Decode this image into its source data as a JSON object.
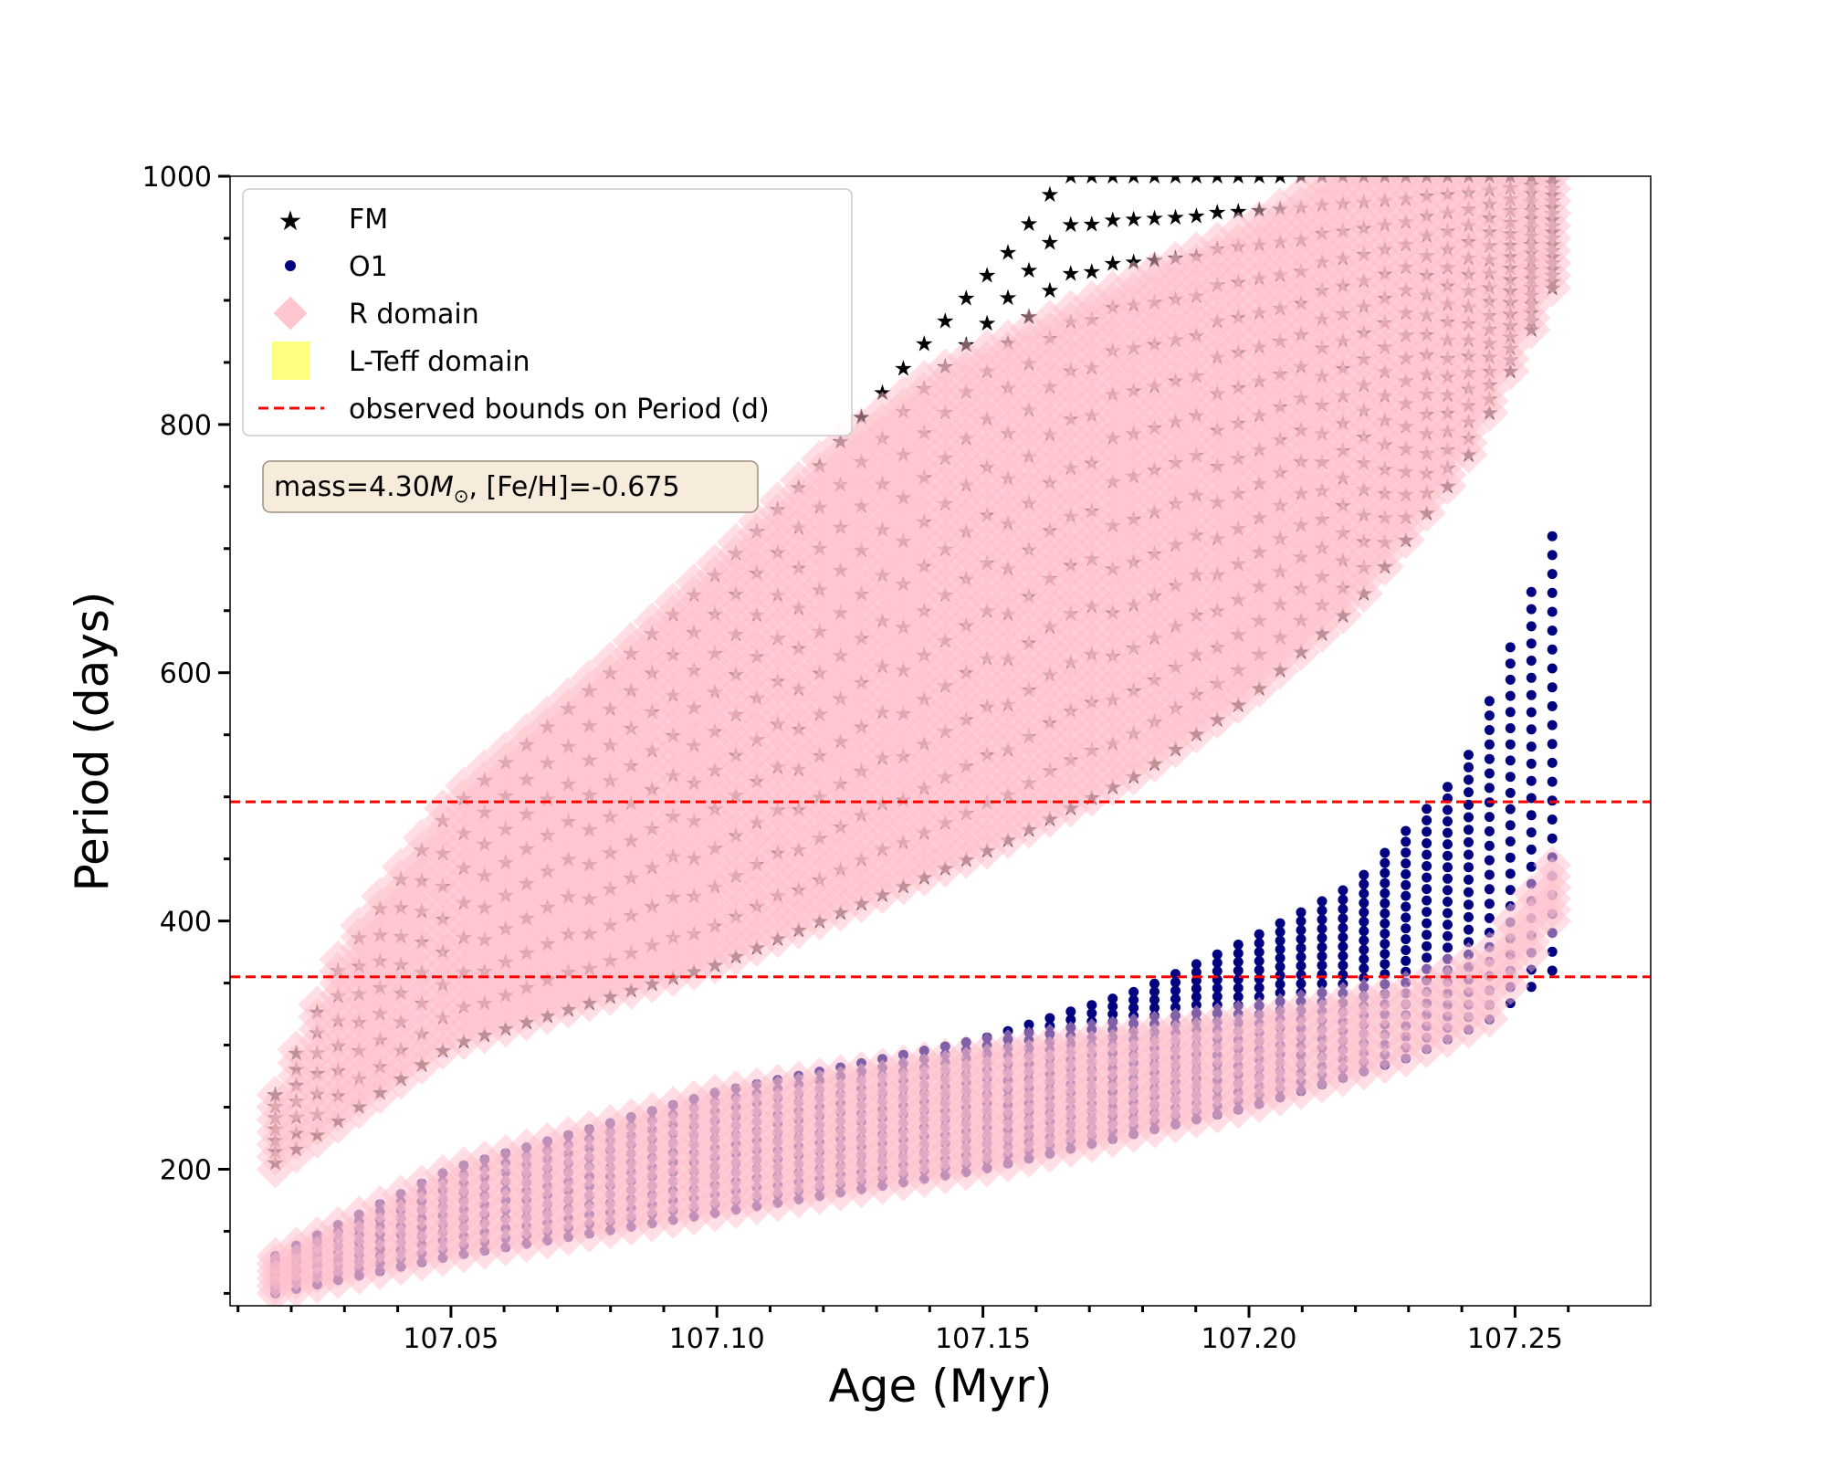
{
  "chart_data": {
    "type": "scatter",
    "title": "",
    "xlabel": "Age (Myr)",
    "ylabel": "Period (days)",
    "xlim": [
      107.0085,
      107.2755
    ],
    "ylim": [
      90,
      1000
    ],
    "x_ticks": [
      "107.05",
      "107.10",
      "107.15",
      "107.20",
      "107.25"
    ],
    "x_tick_values": [
      107.05,
      107.1,
      107.15,
      107.2,
      107.25
    ],
    "y_ticks": [
      "200",
      "400",
      "600",
      "800",
      "1000"
    ],
    "y_tick_values": [
      200,
      400,
      600,
      800,
      1000
    ],
    "grid": false,
    "legend_position": "top-left",
    "legend": [
      {
        "label": "FM",
        "marker": "star",
        "color": "#000000"
      },
      {
        "label": "O1",
        "marker": "circle",
        "color": "#000080"
      },
      {
        "label": "R domain",
        "marker": "diamond",
        "color": "#ffc0cb"
      },
      {
        "label": "L-Teff domain",
        "marker": "square",
        "color": "#ffff80"
      },
      {
        "label": "observed bounds on Period (d)",
        "marker": "dashed-line",
        "color": "#ff0000"
      }
    ],
    "annotation": {
      "prefix": "mass=4.30",
      "mass_symbol": "M",
      "mass_subscript": "⊙",
      "suffix": ", [Fe/H]=-0.675"
    },
    "hlines": [
      496,
      355
    ],
    "age_range": [
      107.017,
      107.257
    ],
    "series": [
      {
        "name": "FM",
        "marker": "star",
        "color": "#000000",
        "lower_envelope": [
          [
            107.017,
            205
          ],
          [
            107.05,
            300
          ],
          [
            107.1,
            365
          ],
          [
            107.15,
            455
          ],
          [
            107.18,
            520
          ],
          [
            107.2,
            580
          ],
          [
            107.22,
            655
          ],
          [
            107.24,
            765
          ],
          [
            107.257,
            910
          ]
        ],
        "upper_envelope": [
          [
            107.017,
            260
          ],
          [
            107.03,
            370
          ],
          [
            107.05,
            490
          ],
          [
            107.08,
            600
          ],
          [
            107.1,
            680
          ],
          [
            107.12,
            770
          ],
          [
            107.14,
            870
          ],
          [
            107.155,
            940
          ],
          [
            107.165,
            1000
          ],
          [
            107.257,
            1000
          ]
        ]
      },
      {
        "name": "O1",
        "marker": "circle",
        "color": "#000080",
        "lower_envelope": [
          [
            107.017,
            100
          ],
          [
            107.05,
            130
          ],
          [
            107.1,
            165
          ],
          [
            107.15,
            200
          ],
          [
            107.2,
            250
          ],
          [
            107.23,
            290
          ],
          [
            107.245,
            320
          ],
          [
            107.257,
            360
          ]
        ],
        "upper_envelope": [
          [
            107.017,
            130
          ],
          [
            107.05,
            200
          ],
          [
            107.1,
            262
          ],
          [
            107.15,
            305
          ],
          [
            107.18,
            345
          ],
          [
            107.2,
            385
          ],
          [
            107.22,
            430
          ],
          [
            107.24,
            520
          ],
          [
            107.25,
            630
          ],
          [
            107.257,
            710
          ]
        ]
      },
      {
        "name": "R domain",
        "marker": "diamond",
        "color": "#ffc0cb",
        "bands": [
          {
            "lower_envelope": [
              [
                107.017,
                200
              ],
              [
                107.05,
                300
              ],
              [
                107.1,
                365
              ],
              [
                107.15,
                455
              ],
              [
                107.18,
                520
              ],
              [
                107.2,
                580
              ],
              [
                107.22,
                655
              ],
              [
                107.24,
                765
              ],
              [
                107.257,
                910
              ]
            ],
            "upper_envelope": [
              [
                107.017,
                260
              ],
              [
                107.03,
                380
              ],
              [
                107.05,
                500
              ],
              [
                107.08,
                610
              ],
              [
                107.1,
                690
              ],
              [
                107.12,
                775
              ],
              [
                107.14,
                840
              ],
              [
                107.16,
                880
              ],
              [
                107.18,
                920
              ],
              [
                107.2,
                960
              ],
              [
                107.215,
                1000
              ],
              [
                107.257,
                1000
              ]
            ]
          },
          {
            "lower_envelope": [
              [
                107.017,
                100
              ],
              [
                107.05,
                130
              ],
              [
                107.1,
                165
              ],
              [
                107.15,
                200
              ],
              [
                107.2,
                250
              ],
              [
                107.23,
                290
              ],
              [
                107.245,
                320
              ],
              [
                107.257,
                400
              ]
            ],
            "upper_envelope": [
              [
                107.017,
                130
              ],
              [
                107.05,
                200
              ],
              [
                107.1,
                262
              ],
              [
                107.15,
                295
              ],
              [
                107.2,
                322
              ],
              [
                107.23,
                345
              ],
              [
                107.245,
                375
              ],
              [
                107.257,
                445
              ]
            ]
          }
        ]
      }
    ]
  }
}
